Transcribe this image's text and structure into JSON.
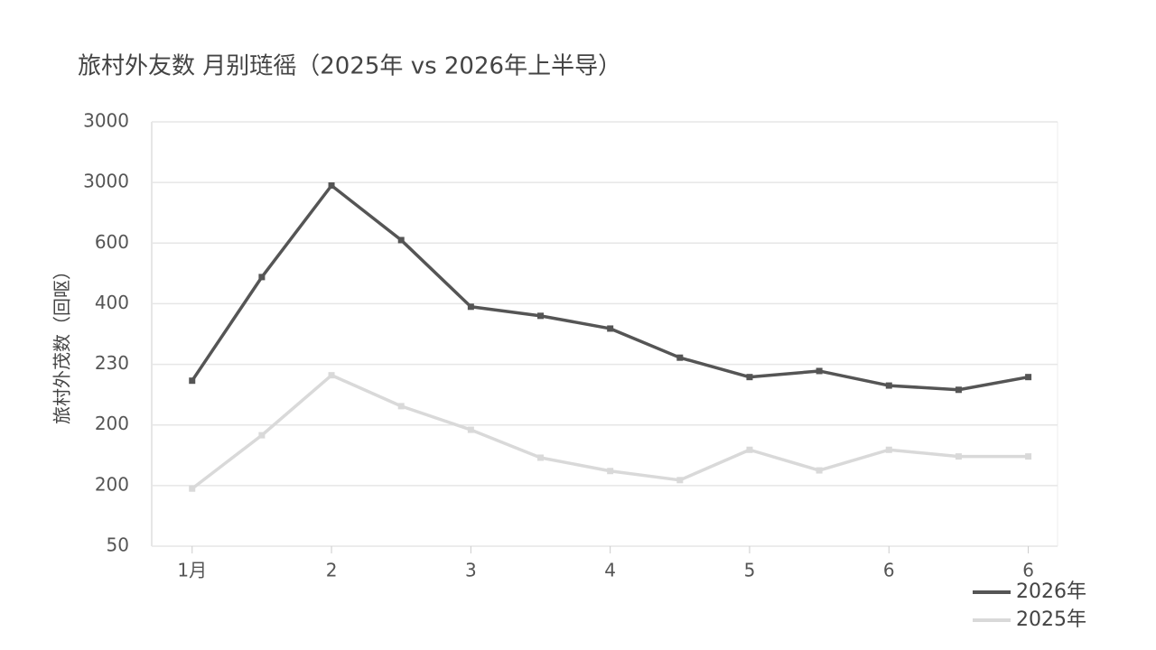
{
  "chart_data": {
    "type": "line",
    "title": "旅村外友数 月别琏徭（2025年 vs 2026年上半导）",
    "y_label": "旅村外茂数（回呕）",
    "x": [
      1,
      1.5,
      2,
      2.5,
      3,
      3.5,
      4,
      4.5,
      5,
      5.5,
      6,
      6.5,
      7
    ],
    "xlim": [
      0.71,
      7.21
    ],
    "xticks": [
      {
        "value": 1,
        "label": "1月"
      },
      {
        "value": 2,
        "label": "2"
      },
      {
        "value": 3,
        "label": "3"
      },
      {
        "value": 4,
        "label": "4"
      },
      {
        "value": 5,
        "label": "5"
      },
      {
        "value": 6,
        "label": "6"
      },
      {
        "value": 7,
        "label": "6"
      }
    ],
    "ylim": [
      0,
      7
    ],
    "yticks": [
      {
        "value": 0,
        "label": "50"
      },
      {
        "value": 1,
        "label": "200"
      },
      {
        "value": 2,
        "label": "200"
      },
      {
        "value": 3,
        "label": "230"
      },
      {
        "value": 4,
        "label": "400"
      },
      {
        "value": 5,
        "label": "600"
      },
      {
        "value": 6,
        "label": "3000"
      },
      {
        "value": 7,
        "label": "3000"
      }
    ],
    "grid": true,
    "series": [
      {
        "name": "2026年",
        "color": "#555555",
        "values": [
          2.73,
          4.44,
          5.95,
          5.05,
          3.95,
          3.8,
          3.59,
          3.11,
          2.79,
          2.89,
          2.65,
          2.58,
          2.79
        ]
      },
      {
        "name": "2025年",
        "color": "#d9d9d9",
        "values": [
          0.95,
          1.83,
          2.82,
          2.31,
          1.92,
          1.46,
          1.24,
          1.09,
          1.59,
          1.25,
          1.59,
          1.48,
          1.48
        ]
      }
    ]
  }
}
